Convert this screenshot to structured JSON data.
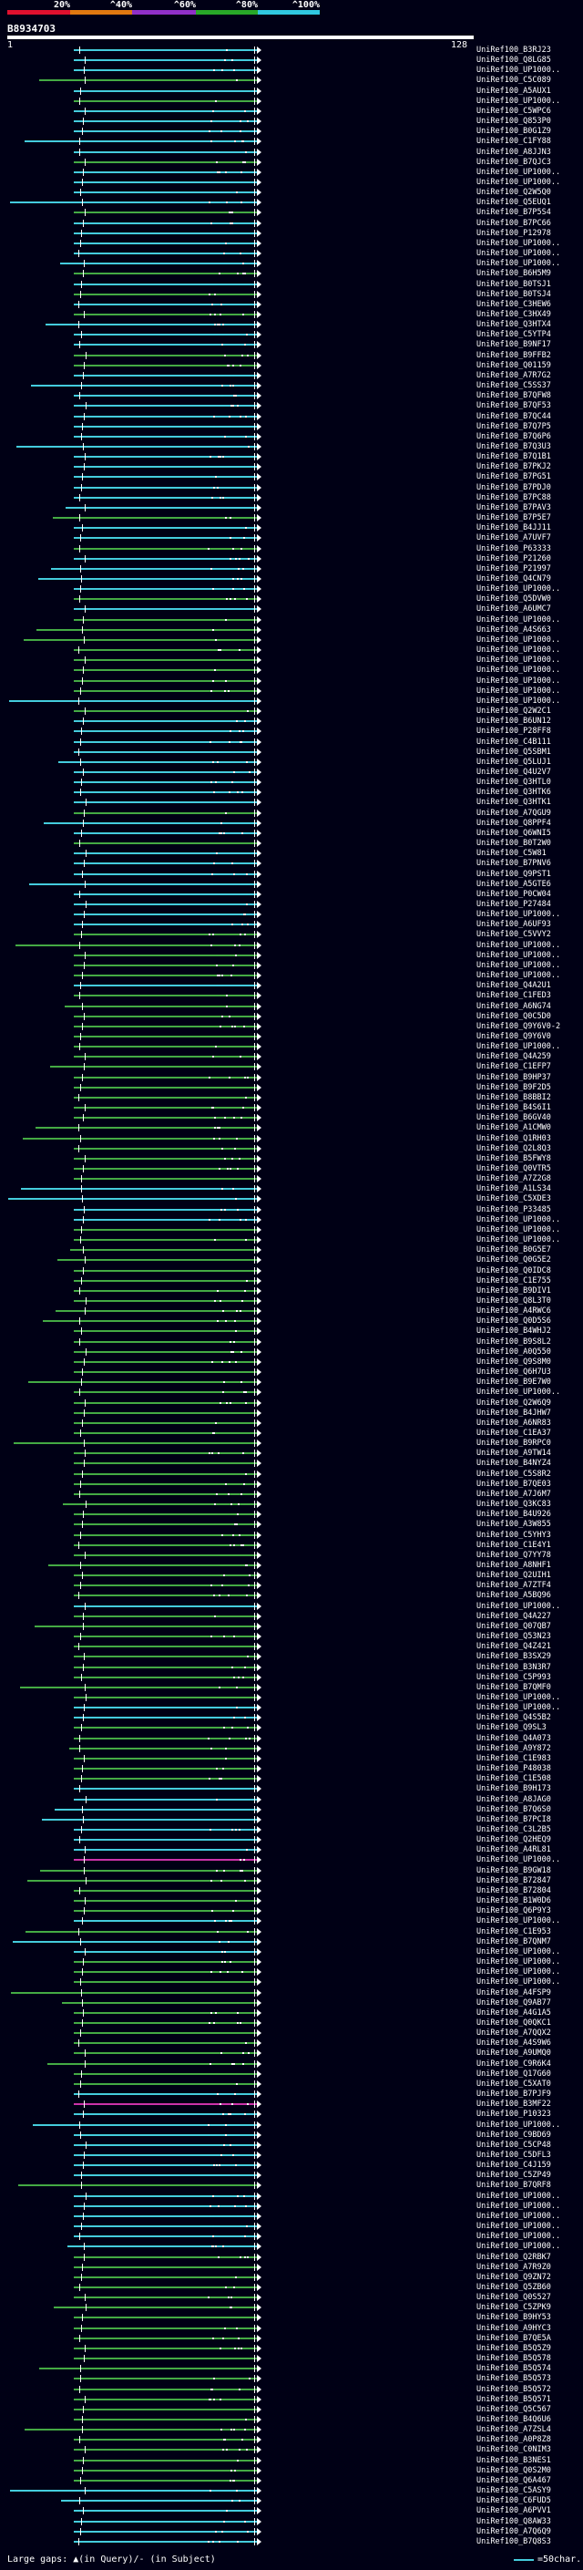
{
  "scale": {
    "labels": [
      "20%",
      "^40%",
      "^60%",
      "^80%",
      "^100%"
    ],
    "colors": [
      "#e0102e",
      "#e07810",
      "#9030c8",
      "#28a828",
      "#30c8e0"
    ]
  },
  "query": {
    "accession": "B8934703",
    "start": "1",
    "end": "128"
  },
  "legend": {
    "text": "Large gaps: ▲(in Query)/- (in Subject)",
    "scale_text": "=50char."
  },
  "hit_colors": {
    "high": "#44ccdd",
    "mid": "#44aa44",
    "low": "#cc33aa"
  },
  "hits": [
    {
      "label": "UniRef100_B3RJ23",
      "color": "high"
    },
    {
      "label": "UniRef100_Q8LG85",
      "color": "high"
    },
    {
      "label": "UniRef100_UP1000..",
      "color": "high"
    },
    {
      "label": "UniRef100_C5C089",
      "color": "mid"
    },
    {
      "label": "UniRef100_A5AUX1",
      "color": "high"
    },
    {
      "label": "UniRef100_UP1000..",
      "color": "mid"
    },
    {
      "label": "UniRef100_C5WPC6",
      "color": "high"
    },
    {
      "label": "UniRef100_Q853P0",
      "color": "high"
    },
    {
      "label": "UniRef100_B0G1Z9",
      "color": "high"
    },
    {
      "label": "UniRef100_C1FY88",
      "color": "high"
    },
    {
      "label": "UniRef100_A8JJN3",
      "color": "high"
    },
    {
      "label": "UniRef100_B7QJC3",
      "color": "mid"
    },
    {
      "label": "UniRef100_UP1000..",
      "color": "high"
    },
    {
      "label": "UniRef100_UP1000..",
      "color": "high"
    },
    {
      "label": "UniRef100_Q2W5Q0",
      "color": "high"
    },
    {
      "label": "UniRef100_Q5EUQ1",
      "color": "high"
    },
    {
      "label": "UniRef100_B7P5S4",
      "color": "mid"
    },
    {
      "label": "UniRef100_B7PC66",
      "color": "high"
    },
    {
      "label": "UniRef100_P12978",
      "color": "high"
    },
    {
      "label": "UniRef100_UP1000..",
      "color": "high"
    },
    {
      "label": "UniRef100_UP1000..",
      "color": "high"
    },
    {
      "label": "UniRef100_UP1000..",
      "color": "high"
    },
    {
      "label": "UniRef100_B6H5M9",
      "color": "mid"
    },
    {
      "label": "UniRef100_B0TSJ1",
      "color": "high"
    },
    {
      "label": "UniRef100_B0TSJ4",
      "color": "mid"
    },
    {
      "label": "UniRef100_C3HEW6",
      "color": "high"
    },
    {
      "label": "UniRef100_C3HX49",
      "color": "mid"
    },
    {
      "label": "UniRef100_Q3HTX4",
      "color": "high"
    },
    {
      "label": "UniRef100_C5YTP4",
      "color": "high"
    },
    {
      "label": "UniRef100_B9NF17",
      "color": "high"
    },
    {
      "label": "UniRef100_B9FFB2",
      "color": "mid"
    },
    {
      "label": "UniRef100_Q01159",
      "color": "mid"
    },
    {
      "label": "UniRef100_A7R7G2",
      "color": "high"
    },
    {
      "label": "UniRef100_C5SS37",
      "color": "high"
    },
    {
      "label": "UniRef100_B7QFW8",
      "color": "high"
    },
    {
      "label": "UniRef100_B7QF53",
      "color": "high"
    },
    {
      "label": "UniRef100_B7QC44",
      "color": "high"
    },
    {
      "label": "UniRef100_B7Q7P5",
      "color": "high"
    },
    {
      "label": "UniRef100_B7Q6P6",
      "color": "high"
    },
    {
      "label": "UniRef100_B7Q3U3",
      "color": "high"
    },
    {
      "label": "UniRef100_B7Q1B1",
      "color": "high"
    },
    {
      "label": "UniRef100_B7PKJ2",
      "color": "high"
    },
    {
      "label": "UniRef100_B7PG51",
      "color": "high"
    },
    {
      "label": "UniRef100_B7PDJ0",
      "color": "high"
    },
    {
      "label": "UniRef100_B7PC88",
      "color": "high"
    },
    {
      "label": "UniRef100_B7PAV3",
      "color": "high"
    },
    {
      "label": "UniRef100_B7P5E7",
      "color": "mid"
    },
    {
      "label": "UniRef100_B4JJ11",
      "color": "high"
    },
    {
      "label": "UniRef100_A7UVF7",
      "color": "high"
    },
    {
      "label": "UniRef100_P63333",
      "color": "mid"
    },
    {
      "label": "UniRef100_P21260",
      "color": "high"
    },
    {
      "label": "UniRef100_P21997",
      "color": "high"
    },
    {
      "label": "UniRef100_Q4CN79",
      "color": "high"
    },
    {
      "label": "UniRef100_UP1000..",
      "color": "high"
    },
    {
      "label": "UniRef100_Q5DVW0",
      "color": "mid"
    },
    {
      "label": "UniRef100_A6UMC7",
      "color": "high"
    },
    {
      "label": "UniRef100_UP1000..",
      "color": "mid"
    },
    {
      "label": "UniRef100_A4S663",
      "color": "mid"
    },
    {
      "label": "UniRef100_UP1000..",
      "color": "mid"
    },
    {
      "label": "UniRef100_UP1000..",
      "color": "mid"
    },
    {
      "label": "UniRef100_UP1000..",
      "color": "mid"
    },
    {
      "label": "UniRef100_UP1000..",
      "color": "mid"
    },
    {
      "label": "UniRef100_UP1000..",
      "color": "mid"
    },
    {
      "label": "UniRef100_UP1000..",
      "color": "mid"
    },
    {
      "label": "UniRef100_UP1000..",
      "color": "high"
    },
    {
      "label": "UniRef100_Q2W2C1",
      "color": "mid"
    },
    {
      "label": "UniRef100_B6UN12",
      "color": "high"
    },
    {
      "label": "UniRef100_P28FF8",
      "color": "high"
    },
    {
      "label": "UniRef100_C4B111",
      "color": "high"
    },
    {
      "label": "UniRef100_Q5SBM1",
      "color": "high"
    },
    {
      "label": "UniRef100_Q5LUJ1",
      "color": "high"
    },
    {
      "label": "UniRef100_Q4U2V7",
      "color": "high"
    },
    {
      "label": "UniRef100_Q3HTL0",
      "color": "high"
    },
    {
      "label": "UniRef100_Q3HTK6",
      "color": "high"
    },
    {
      "label": "UniRef100_Q3HTK1",
      "color": "high"
    },
    {
      "label": "UniRef100_A7QGU9",
      "color": "mid"
    },
    {
      "label": "UniRef100_Q8PPF4",
      "color": "high"
    },
    {
      "label": "UniRef100_Q6WNI5",
      "color": "high"
    },
    {
      "label": "UniRef100_B0T2W0",
      "color": "mid"
    },
    {
      "label": "UniRef100_C5W81",
      "color": "high"
    },
    {
      "label": "UniRef100_B7PNV6",
      "color": "high"
    },
    {
      "label": "UniRef100_Q9PST1",
      "color": "high"
    },
    {
      "label": "UniRef100_A5GTE6",
      "color": "high"
    },
    {
      "label": "UniRef100_P0CW04",
      "color": "high"
    },
    {
      "label": "UniRef100_P27484",
      "color": "high"
    },
    {
      "label": "UniRef100_UP1000..",
      "color": "high"
    },
    {
      "label": "UniRef100_A6UF93",
      "color": "high"
    },
    {
      "label": "UniRef100_C5VVY2",
      "color": "mid"
    },
    {
      "label": "UniRef100_UP1000..",
      "color": "mid"
    },
    {
      "label": "UniRef100_UP1000..",
      "color": "mid"
    },
    {
      "label": "UniRef100_UP1000..",
      "color": "mid"
    },
    {
      "label": "UniRef100_UP1000..",
      "color": "mid"
    },
    {
      "label": "UniRef100_Q4A2U1",
      "color": "high"
    },
    {
      "label": "UniRef100_C1FED3",
      "color": "mid"
    },
    {
      "label": "UniRef100_A6NG74",
      "color": "mid"
    },
    {
      "label": "UniRef100_Q0C5D0",
      "color": "mid"
    },
    {
      "label": "UniRef100_Q9Y6V0-2",
      "color": "mid"
    },
    {
      "label": "UniRef100_Q9Y6V0",
      "color": "mid"
    },
    {
      "label": "UniRef100_UP1000..",
      "color": "mid"
    },
    {
      "label": "UniRef100_Q4A259",
      "color": "mid"
    },
    {
      "label": "UniRef100_C1EFP7",
      "color": "mid"
    },
    {
      "label": "UniRef100_B9HP37",
      "color": "mid"
    },
    {
      "label": "UniRef100_B9F2D5",
      "color": "mid"
    },
    {
      "label": "UniRef100_B8BBI2",
      "color": "mid"
    },
    {
      "label": "UniRef100_B4S6I1",
      "color": "mid"
    },
    {
      "label": "UniRef100_B6GV40",
      "color": "mid"
    },
    {
      "label": "UniRef100_A1CMW0",
      "color": "mid"
    },
    {
      "label": "UniRef100_Q1RH03",
      "color": "mid"
    },
    {
      "label": "UniRef100_Q2L8Q3",
      "color": "mid"
    },
    {
      "label": "UniRef100_B5FWY8",
      "color": "mid"
    },
    {
      "label": "UniRef100_Q0VTR5",
      "color": "mid"
    },
    {
      "label": "UniRef100_A7Z2G8",
      "color": "mid"
    },
    {
      "label": "UniRef100_A1LS34",
      "color": "high"
    },
    {
      "label": "UniRef100_C5XDE3",
      "color": "high"
    },
    {
      "label": "UniRef100_P33485",
      "color": "high"
    },
    {
      "label": "UniRef100_UP1000..",
      "color": "high"
    },
    {
      "label": "UniRef100_UP1000..",
      "color": "mid"
    },
    {
      "label": "UniRef100_UP1000..",
      "color": "mid"
    },
    {
      "label": "UniRef100_B0G5E7",
      "color": "mid"
    },
    {
      "label": "UniRef100_Q0G5E2",
      "color": "mid"
    },
    {
      "label": "UniRef100_Q0IDC8",
      "color": "mid"
    },
    {
      "label": "UniRef100_C1E755",
      "color": "mid"
    },
    {
      "label": "UniRef100_B9DIV1",
      "color": "mid"
    },
    {
      "label": "UniRef100_Q8L3T0",
      "color": "mid"
    },
    {
      "label": "UniRef100_A4RWC6",
      "color": "mid"
    },
    {
      "label": "UniRef100_Q0D5S6",
      "color": "mid"
    },
    {
      "label": "UniRef100_B4WHJ2",
      "color": "mid"
    },
    {
      "label": "UniRef100_B9S8L2",
      "color": "mid"
    },
    {
      "label": "UniRef100_A0Q550",
      "color": "mid"
    },
    {
      "label": "UniRef100_Q9S8M0",
      "color": "mid"
    },
    {
      "label": "UniRef100_Q6H7U3",
      "color": "mid"
    },
    {
      "label": "UniRef100_B9E7W0",
      "color": "mid"
    },
    {
      "label": "UniRef100_UP1000..",
      "color": "mid"
    },
    {
      "label": "UniRef100_Q2W6Q9",
      "color": "mid"
    },
    {
      "label": "UniRef100_B4JHW7",
      "color": "mid"
    },
    {
      "label": "UniRef100_A6NR83",
      "color": "mid"
    },
    {
      "label": "UniRef100_C1EA37",
      "color": "mid"
    },
    {
      "label": "UniRef100_B9RPC0",
      "color": "mid"
    },
    {
      "label": "UniRef100_A9TW14",
      "color": "mid"
    },
    {
      "label": "UniRef100_B4NYZ4",
      "color": "mid"
    },
    {
      "label": "UniRef100_C5S8R2",
      "color": "mid"
    },
    {
      "label": "UniRef100_B7QE03",
      "color": "mid"
    },
    {
      "label": "UniRef100_A7J6M7",
      "color": "mid"
    },
    {
      "label": "UniRef100_Q3KC83",
      "color": "mid"
    },
    {
      "label": "UniRef100_B4U926",
      "color": "mid"
    },
    {
      "label": "UniRef100_A3W855",
      "color": "mid"
    },
    {
      "label": "UniRef100_C5YHY3",
      "color": "mid"
    },
    {
      "label": "UniRef100_C1E4Y1",
      "color": "mid"
    },
    {
      "label": "UniRef100_Q7YY78",
      "color": "mid"
    },
    {
      "label": "UniRef100_A8NHF1",
      "color": "mid"
    },
    {
      "label": "UniRef100_Q2UIH1",
      "color": "mid"
    },
    {
      "label": "UniRef100_A7ZTF4",
      "color": "mid"
    },
    {
      "label": "UniRef100_A5BQ96",
      "color": "mid"
    },
    {
      "label": "UniRef100_UP1000..",
      "color": "high"
    },
    {
      "label": "UniRef100_Q4A227",
      "color": "mid"
    },
    {
      "label": "UniRef100_Q07QB7",
      "color": "mid"
    },
    {
      "label": "UniRef100_Q53N23",
      "color": "mid"
    },
    {
      "label": "UniRef100_Q4Z421",
      "color": "mid"
    },
    {
      "label": "UniRef100_B3SX29",
      "color": "mid"
    },
    {
      "label": "UniRef100_B3N3R7",
      "color": "mid"
    },
    {
      "label": "UniRef100_C5P993",
      "color": "mid"
    },
    {
      "label": "UniRef100_B7QMF0",
      "color": "mid"
    },
    {
      "label": "UniRef100_UP1000..",
      "color": "mid"
    },
    {
      "label": "UniRef100_UP1000..",
      "color": "high"
    },
    {
      "label": "UniRef100_Q4S5B2",
      "color": "high"
    },
    {
      "label": "UniRef100_Q9SL3",
      "color": "mid"
    },
    {
      "label": "UniRef100_Q4A073",
      "color": "mid"
    },
    {
      "label": "UniRef100_A9Y872",
      "color": "mid"
    },
    {
      "label": "UniRef100_C1E983",
      "color": "mid"
    },
    {
      "label": "UniRef100_P48038",
      "color": "mid"
    },
    {
      "label": "UniRef100_C1E508",
      "color": "mid"
    },
    {
      "label": "UniRef100_B9H173",
      "color": "high"
    },
    {
      "label": "UniRef100_A8JAG0",
      "color": "high"
    },
    {
      "label": "UniRef100_B7Q6S0",
      "color": "high"
    },
    {
      "label": "UniRef100_B7PCI8",
      "color": "high"
    },
    {
      "label": "UniRef100_C3L2B5",
      "color": "high"
    },
    {
      "label": "UniRef100_Q2HEQ9",
      "color": "high"
    },
    {
      "label": "UniRef100_A4RL81",
      "color": "high"
    },
    {
      "label": "UniRef100_UP1000..",
      "color": "low"
    },
    {
      "label": "UniRef100_B9GW18",
      "color": "mid"
    },
    {
      "label": "UniRef100_B72847",
      "color": "mid"
    },
    {
      "label": "UniRef100_B72804",
      "color": "mid"
    },
    {
      "label": "UniRef100_B1W0D6",
      "color": "mid"
    },
    {
      "label": "UniRef100_Q6P9Y3",
      "color": "mid"
    },
    {
      "label": "UniRef100_UP1000..",
      "color": "high"
    },
    {
      "label": "UniRef100_C1E953",
      "color": "mid"
    },
    {
      "label": "UniRef100_B7QNM7",
      "color": "high"
    },
    {
      "label": "UniRef100_UP1000..",
      "color": "high"
    },
    {
      "label": "UniRef100_UP1000..",
      "color": "mid"
    },
    {
      "label": "UniRef100_UP1000..",
      "color": "mid"
    },
    {
      "label": "UniRef100_UP1000..",
      "color": "mid"
    },
    {
      "label": "UniRef100_A4FSP9",
      "color": "mid"
    },
    {
      "label": "UniRef100_Q9AB77",
      "color": "mid"
    },
    {
      "label": "UniRef100_A4G1A5",
      "color": "mid"
    },
    {
      "label": "UniRef100_Q0QKC1",
      "color": "mid"
    },
    {
      "label": "UniRef100_A7QQX2",
      "color": "mid"
    },
    {
      "label": "UniRef100_A4S9W6",
      "color": "mid"
    },
    {
      "label": "UniRef100_A9UMQ0",
      "color": "mid"
    },
    {
      "label": "UniRef100_C9R6K4",
      "color": "mid"
    },
    {
      "label": "UniRef100_Q17G60",
      "color": "mid"
    },
    {
      "label": "UniRef100_C5XAT0",
      "color": "mid"
    },
    {
      "label": "UniRef100_B7PJF9",
      "color": "high"
    },
    {
      "label": "UniRef100_B3MF22",
      "color": "low"
    },
    {
      "label": "UniRef100_P10323",
      "color": "high"
    },
    {
      "label": "UniRef100_UP1000..",
      "color": "high"
    },
    {
      "label": "UniRef100_C9BD69",
      "color": "high"
    },
    {
      "label": "UniRef100_C5CP48",
      "color": "high"
    },
    {
      "label": "UniRef100_C5DFL3",
      "color": "high"
    },
    {
      "label": "UniRef100_C4J159",
      "color": "high"
    },
    {
      "label": "UniRef100_C5ZP49",
      "color": "high"
    },
    {
      "label": "UniRef100_B7QRF8",
      "color": "mid"
    },
    {
      "label": "UniRef100_UP1000..",
      "color": "high"
    },
    {
      "label": "UniRef100_UP1000..",
      "color": "high"
    },
    {
      "label": "UniRef100_UP1000..",
      "color": "high"
    },
    {
      "label": "UniRef100_UP1000..",
      "color": "high"
    },
    {
      "label": "UniRef100_UP1000..",
      "color": "high"
    },
    {
      "label": "UniRef100_UP1000..",
      "color": "high"
    },
    {
      "label": "UniRef100_Q2RBK7",
      "color": "mid"
    },
    {
      "label": "UniRef100_A7R9Z0",
      "color": "mid"
    },
    {
      "label": "UniRef100_Q9ZN72",
      "color": "mid"
    },
    {
      "label": "UniRef100_Q5ZB60",
      "color": "mid"
    },
    {
      "label": "UniRef100_Q0S527",
      "color": "mid"
    },
    {
      "label": "UniRef100_C5ZPK9",
      "color": "mid"
    },
    {
      "label": "UniRef100_B9HY53",
      "color": "mid"
    },
    {
      "label": "UniRef100_A9HYC3",
      "color": "mid"
    },
    {
      "label": "UniRef100_B7QE5A",
      "color": "mid"
    },
    {
      "label": "UniRef100_B5Q5Z9",
      "color": "mid"
    },
    {
      "label": "UniRef100_B5Q578",
      "color": "mid"
    },
    {
      "label": "UniRef100_B5Q574",
      "color": "mid"
    },
    {
      "label": "UniRef100_B5Q573",
      "color": "mid"
    },
    {
      "label": "UniRef100_B5Q572",
      "color": "mid"
    },
    {
      "label": "UniRef100_B5Q571",
      "color": "mid"
    },
    {
      "label": "UniRef100_Q5C567",
      "color": "mid"
    },
    {
      "label": "UniRef100_B4Q6U6",
      "color": "mid"
    },
    {
      "label": "UniRef100_A7ZSL4",
      "color": "mid"
    },
    {
      "label": "UniRef100_A0P8Z8",
      "color": "mid"
    },
    {
      "label": "UniRef100_C0NIM3",
      "color": "mid"
    },
    {
      "label": "UniRef100_B3NES1",
      "color": "mid"
    },
    {
      "label": "UniRef100_Q0S2M0",
      "color": "mid"
    },
    {
      "label": "UniRef100_Q6A467",
      "color": "mid"
    },
    {
      "label": "UniRef100_C5ASY9",
      "color": "high"
    },
    {
      "label": "UniRef100_C6FUD5",
      "color": "high"
    },
    {
      "label": "UniRef100_A6PVV1",
      "color": "high"
    },
    {
      "label": "UniRef100_Q8AW33",
      "color": "high"
    },
    {
      "label": "UniRef100_A7Q6Q9",
      "color": "high"
    },
    {
      "label": "UniRef100_B7Q8S3",
      "color": "high"
    }
  ]
}
